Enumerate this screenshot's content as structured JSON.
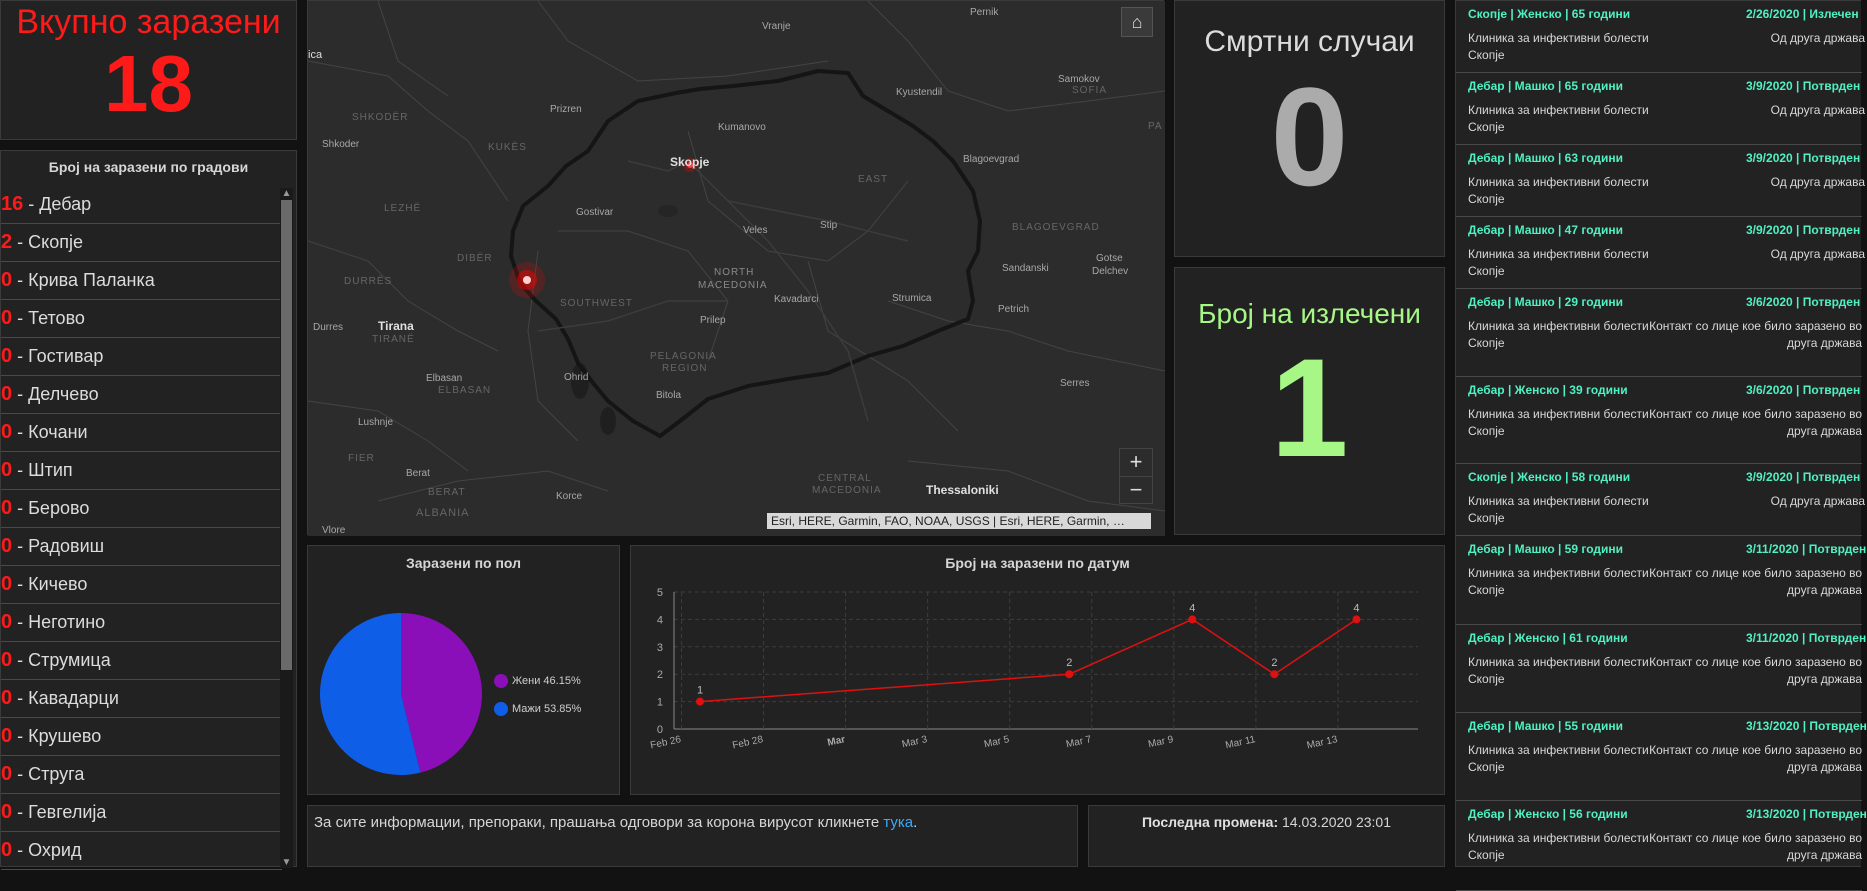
{
  "total": {
    "title": "Вкупно заразени",
    "value": "18"
  },
  "cities": {
    "title": "Број на заразени по градови",
    "items": [
      {
        "n": "16",
        "name": " - Дебар"
      },
      {
        "n": "2",
        "name": " - Скопје"
      },
      {
        "n": "0",
        "name": " - Крива Паланка"
      },
      {
        "n": "0",
        "name": " - Тетово"
      },
      {
        "n": "0",
        "name": " - Гостивар"
      },
      {
        "n": "0",
        "name": " - Делчево"
      },
      {
        "n": "0",
        "name": " - Кочани"
      },
      {
        "n": "0",
        "name": " - Штип"
      },
      {
        "n": "0",
        "name": " - Берово"
      },
      {
        "n": "0",
        "name": " - Радовиш"
      },
      {
        "n": "0",
        "name": " - Кичево"
      },
      {
        "n": "0",
        "name": " - Неготино"
      },
      {
        "n": "0",
        "name": " - Струмица"
      },
      {
        "n": "0",
        "name": " - Кавадарци"
      },
      {
        "n": "0",
        "name": " - Крушево"
      },
      {
        "n": "0",
        "name": " - Струга"
      },
      {
        "n": "0",
        "name": " - Гевгелија"
      },
      {
        "n": "0",
        "name": " - Охрид"
      }
    ]
  },
  "map": {
    "attribution": "Esri, HERE, Garmin, FAO, NOAA, USGS | Esri, HERE, Garmin, …",
    "home_icon": "home-icon",
    "zoom_in": "+",
    "zoom_out": "−",
    "labels": {
      "vranje": "Vranje",
      "pernik": "Pernik",
      "ica": "ica",
      "samokov": "Samokov",
      "sofia": "SOFIA",
      "shkoder_r": "SHKODËR",
      "prizren": "Prizren",
      "kyustendil": "Kyustendil",
      "shkoder": "Shkoder",
      "kukes": "KUKËS",
      "kumanovo": "Kumanovo",
      "skopje": "Skopje",
      "blagoevgrad": "Blagoevgrad",
      "pa": "PA",
      "lezhe": "LEZHË",
      "gostivar": "Gostivar",
      "east": "EAST",
      "stip": "Stip",
      "veles": "Veles",
      "blagoevgrad_r": "BLAGOEVGRAD",
      "diber": "DIBËR",
      "durres_r": "DURRËS",
      "north": "NORTH",
      "macedonia": "MACEDONIA",
      "sandanski": "Sandanski",
      "gotse1": "Gotse",
      "gotse2": "Delchev",
      "durres": "Durres",
      "tirana": "Tirana",
      "tirane": "TIRANË",
      "southwest": "SOUTHWEST",
      "kavadarci": "Kavadarci",
      "strumica": "Strumica",
      "petrich": "Petrich",
      "prilep": "Prilep",
      "pelagonia": "PELAGONIA",
      "region": "REGION",
      "elbasan": "Elbasan",
      "elbasan_r": "ELBASAN",
      "ohrid": "Ohrid",
      "bitola": "Bitola",
      "serres": "Serres",
      "lushnje": "Lushnje",
      "fier": "FIER",
      "berat": "Berat",
      "berat_r": "BERAT",
      "central": "CENTRAL",
      "cmacedonia": "MACEDONIA",
      "thessaloniki": "Thessaloniki",
      "korce": "Korce",
      "albania": "ALBANIA",
      "vlore": "Vlore"
    }
  },
  "deaths": {
    "title": "Смртни случаи",
    "value": "0"
  },
  "recovered": {
    "title": "Број на излечени",
    "value": "1"
  },
  "gender": {
    "title": "Заразени по пол",
    "slices": [
      {
        "name": "Жени",
        "pct_label": "46.15%",
        "value": 46.15,
        "color": "#8a0fb8"
      },
      {
        "name": "Мажи",
        "pct_label": "53.85%",
        "value": 53.85,
        "color": "#0f5ee8"
      }
    ]
  },
  "chart_data": {
    "type": "line",
    "title": "Број на заразени по датум",
    "x": [
      "2020-02-26",
      "2020-03-06",
      "2020-03-09",
      "2020-03-11",
      "2020-03-13"
    ],
    "values": [
      1,
      2,
      4,
      2,
      4
    ],
    "point_labels": [
      "1",
      "2",
      "4",
      "2",
      "4"
    ],
    "x_ticks": [
      "Feb 26",
      "Feb 28",
      "Mar",
      "Mar 3",
      "Mar 5",
      "Mar 7",
      "Mar 9",
      "Mar 11",
      "Mar 13"
    ],
    "y_ticks": [
      "0",
      "1",
      "2",
      "3",
      "4",
      "5"
    ],
    "ylim": [
      0,
      5
    ],
    "grid": true,
    "color": "#e01010"
  },
  "info": {
    "text": "За сите информации, препораки, прашања одговори за корона вирусот кликнете ",
    "link": "тука",
    "end": "."
  },
  "last_change": {
    "label": "Последна промена:",
    "value": " 14.03.2020 23:01"
  },
  "cases": [
    {
      "head": "Скопје | Женско | 65 години",
      "date": "2/26/2020 | Излечен",
      "clinic": "Клиника за инфективни болести Скопје",
      "src": "Од друга држава"
    },
    {
      "head": "Дебар | Машко | 65 години",
      "date": "3/9/2020 | Потврден",
      "clinic": "Клиника за инфективни болести Скопје",
      "src": "Од друга држава"
    },
    {
      "head": "Дебар | Машко | 63 години",
      "date": "3/9/2020 | Потврден",
      "clinic": "Клиника за инфективни болести Скопје",
      "src": "Од друга држава"
    },
    {
      "head": "Дебар | Машко | 47 години",
      "date": "3/9/2020 | Потврден",
      "clinic": "Клиника за инфективни болести Скопје",
      "src": "Од друга држава"
    },
    {
      "head": "Дебар | Машко | 29 години",
      "date": "3/6/2020 | Потврден",
      "clinic": "Клиника за инфективни болести Скопје",
      "src": "Контакт со лице кое било заразено во друга држава"
    },
    {
      "head": "Дебар | Женско | 39 години",
      "date": "3/6/2020 | Потврден",
      "clinic": "Клиника за инфективни болести Скопје",
      "src": "Контакт со лице кое било заразено во друга држава"
    },
    {
      "head": "Скопје | Женско | 58 години",
      "date": "3/9/2020 | Потврден",
      "clinic": "Клиника за инфективни болести Скопје",
      "src": "Од друга држава"
    },
    {
      "head": "Дебар | Машко | 59 години",
      "date": "3/11/2020 | Потврден",
      "clinic": "Клиника за инфективни болести Скопје",
      "src": "Контакт со лице кое било заразено во друга држава"
    },
    {
      "head": "Дебар | Женско | 61 години",
      "date": "3/11/2020 | Потврден",
      "clinic": "Клиника за инфективни болести Скопје",
      "src": "Контакт со лице кое било заразено во друга држава"
    },
    {
      "head": "Дебар | Машко | 55 години",
      "date": "3/13/2020 | Потврден",
      "clinic": "Клиника за инфективни болести Скопје",
      "src": "Контакт со лице кое било заразено во друга држава"
    },
    {
      "head": "Дебар | Женско | 56 години",
      "date": "3/13/2020 | Потврден",
      "clinic": "Клиника за инфективни болести Скопје",
      "src": "Контакт со лице кое било заразено во друга држава"
    }
  ]
}
